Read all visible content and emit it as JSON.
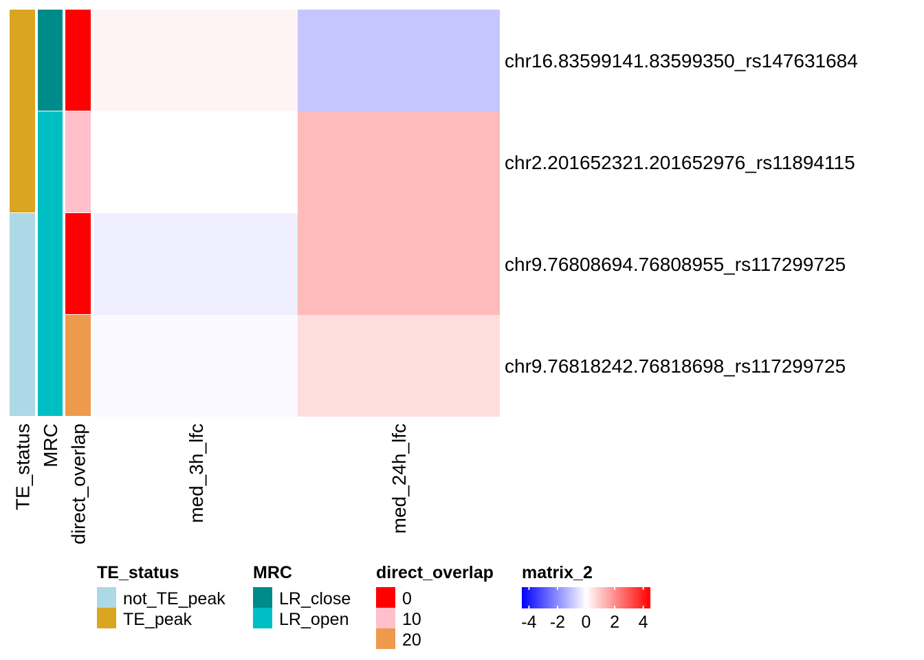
{
  "chart_data": {
    "type": "heatmap",
    "rows": [
      "chr16.83599141.83599350_rs147631684",
      "chr2.201652321.201652976_rs11894115",
      "chr9.76808694.76808955_rs117299725",
      "chr9.76818242.76818698_rs117299725"
    ],
    "columns": [
      "med_3h_lfc",
      "med_24h_lfc"
    ],
    "values": [
      [
        0.2,
        -1.0
      ],
      [
        0.0,
        1.2
      ],
      [
        -0.3,
        1.2
      ],
      [
        -0.1,
        0.6
      ]
    ],
    "annotations": [
      {
        "name": "TE_status",
        "values": [
          "TE_peak",
          "TE_peak",
          "not_TE_peak",
          "not_TE_peak"
        ],
        "legend": [
          {
            "label": "not_TE_peak",
            "color": "#ADD8E6"
          },
          {
            "label": "TE_peak",
            "color": "#DAA520"
          }
        ]
      },
      {
        "name": "MRC",
        "values": [
          "LR_close",
          "LR_open",
          "LR_open",
          "LR_open"
        ],
        "legend": [
          {
            "label": "LR_close",
            "color": "#008B8B"
          },
          {
            "label": "LR_open",
            "color": "#00BFC4"
          }
        ]
      },
      {
        "name": "direct_overlap",
        "values": [
          0,
          10,
          0,
          20
        ],
        "legend": [
          {
            "label": "0",
            "color": "#FF0000"
          },
          {
            "label": "10",
            "color": "#FFC0CB"
          },
          {
            "label": "20",
            "color": "#EE9A4D"
          }
        ]
      }
    ],
    "color_scale": {
      "name": "matrix_2",
      "domain": [
        -4.5,
        0,
        4.5
      ],
      "colors": [
        "#0000FF",
        "#FFFFFF",
        "#FF0000"
      ],
      "ticks": [
        "-4",
        "-2",
        "0",
        "2",
        "4"
      ],
      "tick_values": [
        -4,
        -2,
        0,
        2,
        4
      ]
    }
  }
}
